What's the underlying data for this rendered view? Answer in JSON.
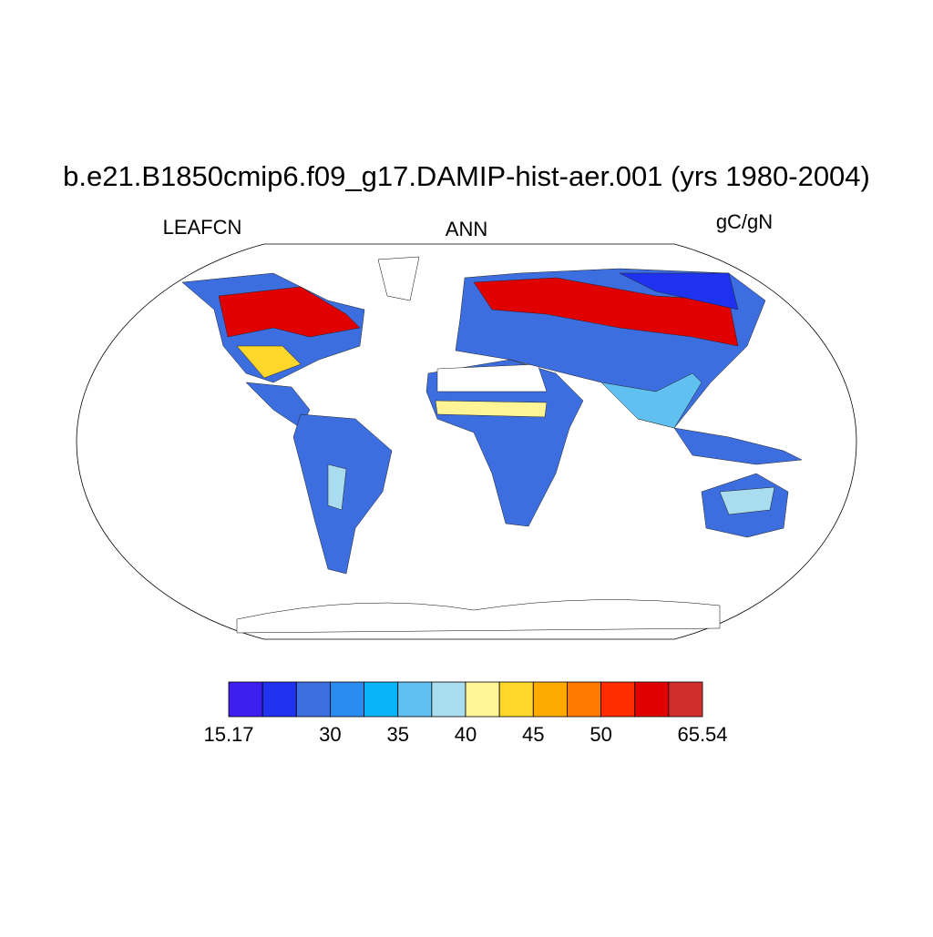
{
  "header": {
    "title": "b.e21.B1850cmip6.f09_g17.DAMIP-hist-aer.001 (yrs 1980-2004)",
    "left": "LEAFCN",
    "center": "ANN",
    "right": "gC/gN"
  },
  "colorbar": {
    "colors": [
      "#3f1ff0",
      "#1e32f0",
      "#3c6ee0",
      "#2a8cf0",
      "#0ab4fa",
      "#60c0f0",
      "#aadcf0",
      "#fff596",
      "#ffd72a",
      "#ffaa00",
      "#ff7800",
      "#ff2d00",
      "#e10000",
      "#d22d2d"
    ],
    "levels": [
      15.17,
      null,
      null,
      30,
      null,
      35,
      null,
      40,
      null,
      45,
      null,
      50,
      null,
      null,
      65.54
    ]
  }
}
